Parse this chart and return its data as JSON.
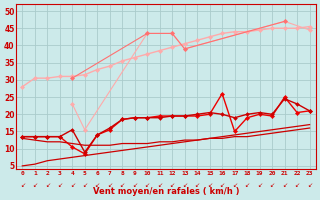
{
  "bg_color": "#cceaea",
  "grid_color": "#aacccc",
  "xlabel": "Vent moyen/en rafales ( km/h )",
  "x_values": [
    0,
    1,
    2,
    3,
    4,
    5,
    6,
    7,
    8,
    9,
    10,
    11,
    12,
    13,
    14,
    15,
    16,
    17,
    18,
    19,
    20,
    21,
    22,
    23
  ],
  "ylim": [
    4,
    52
  ],
  "yticks": [
    5,
    10,
    15,
    20,
    25,
    30,
    35,
    40,
    45,
    50
  ],
  "lines": [
    {
      "name": "light_pink_trend",
      "color": "#ffaaaa",
      "lw": 1.0,
      "marker": "D",
      "ms": 2.5,
      "connect": true,
      "values": [
        28.0,
        30.5,
        30.5,
        31.0,
        31.0,
        31.5,
        33.0,
        34.0,
        35.5,
        36.5,
        37.5,
        38.5,
        39.5,
        40.5,
        41.5,
        42.5,
        43.5,
        44.0,
        44.0,
        44.5,
        45.0,
        45.0,
        45.0,
        45.5
      ]
    },
    {
      "name": "light_pink_scatter",
      "color": "#ffaaaa",
      "lw": 0.8,
      "marker": "D",
      "ms": 2.5,
      "connect": true,
      "values": [
        null,
        null,
        null,
        null,
        23.0,
        15.5,
        null,
        null,
        null,
        null,
        43.5,
        null,
        43.5,
        39.0,
        null,
        null,
        null,
        null,
        null,
        null,
        null,
        47.0,
        null,
        44.5
      ]
    },
    {
      "name": "medium_pink_scatter",
      "color": "#ff7777",
      "lw": 0.8,
      "marker": "D",
      "ms": 2.5,
      "connect": true,
      "values": [
        null,
        null,
        null,
        null,
        30.5,
        null,
        null,
        null,
        null,
        null,
        43.5,
        null,
        43.5,
        39.0,
        null,
        null,
        null,
        null,
        null,
        null,
        null,
        47.0,
        null,
        null
      ]
    },
    {
      "name": "red_scatter_markers",
      "color": "#dd0000",
      "lw": 1.0,
      "marker": "D",
      "ms": 2.5,
      "connect": true,
      "values": [
        13.5,
        13.5,
        13.5,
        13.5,
        10.5,
        8.5,
        14.0,
        15.5,
        18.5,
        19.0,
        19.0,
        19.5,
        19.5,
        19.5,
        19.5,
        20.0,
        26.0,
        15.0,
        19.0,
        20.0,
        19.5,
        25.0,
        20.5,
        21.0
      ]
    },
    {
      "name": "red_smooth_upper",
      "color": "#dd0000",
      "lw": 1.0,
      "marker": "D",
      "ms": 2.0,
      "connect": true,
      "values": [
        13.5,
        13.5,
        13.5,
        13.5,
        15.5,
        9.0,
        14.0,
        16.0,
        18.5,
        19.0,
        19.0,
        19.0,
        19.5,
        19.5,
        20.0,
        20.5,
        20.0,
        19.0,
        20.0,
        20.5,
        20.0,
        24.5,
        23.0,
        21.0
      ]
    },
    {
      "name": "red_lower_trend",
      "color": "#cc0000",
      "lw": 0.9,
      "marker": null,
      "ms": 0,
      "connect": true,
      "values": [
        13.0,
        12.5,
        12.0,
        12.0,
        11.5,
        11.0,
        11.0,
        11.0,
        11.5,
        11.5,
        11.5,
        12.0,
        12.0,
        12.5,
        12.5,
        13.0,
        13.0,
        13.5,
        13.5,
        14.0,
        14.5,
        15.0,
        15.5,
        16.0
      ]
    },
    {
      "name": "red_diagonal",
      "color": "#cc0000",
      "lw": 0.9,
      "marker": null,
      "ms": 0,
      "connect": true,
      "values": [
        5.0,
        5.5,
        6.5,
        7.0,
        7.5,
        8.0,
        8.5,
        9.0,
        9.5,
        10.0,
        10.5,
        11.0,
        11.5,
        12.0,
        12.5,
        13.0,
        13.5,
        14.0,
        14.5,
        15.0,
        15.5,
        16.0,
        16.5,
        17.0
      ]
    }
  ]
}
